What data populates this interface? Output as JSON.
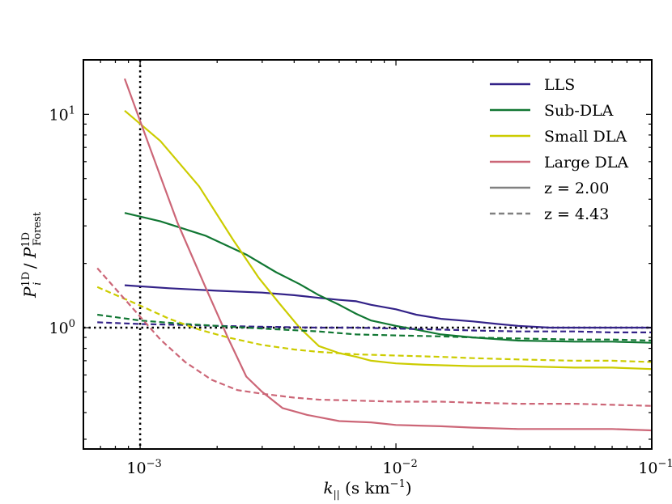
{
  "chart_data": {
    "type": "line",
    "xscale": "log",
    "yscale": "log",
    "xlim": [
      0.0006,
      0.1
    ],
    "ylim": [
      0.27,
      18
    ],
    "xlabel": "k|| (s km−1)",
    "ylabel": "P_i^1D / P_Forest^1D",
    "x_ticks": [
      {
        "value": 0.001,
        "base": "10",
        "exp": "−3"
      },
      {
        "value": 0.01,
        "base": "10",
        "exp": "−2"
      },
      {
        "value": 0.1,
        "base": "10",
        "exp": "−1"
      }
    ],
    "y_ticks": [
      {
        "value": 1,
        "base": "10",
        "exp": "0"
      },
      {
        "value": 10,
        "base": "10",
        "exp": "1"
      }
    ],
    "reference_lines": [
      {
        "axis": "x",
        "value": 0.001,
        "style": "dotted"
      },
      {
        "axis": "y",
        "value": 1.0,
        "style": "dotted"
      }
    ],
    "legend": {
      "position": "top-right",
      "entries": [
        {
          "label": "LLS",
          "color": "#332288",
          "style": "solid"
        },
        {
          "label": "Sub-DLA",
          "color": "#117733",
          "style": "solid"
        },
        {
          "label": "Small DLA",
          "color": "#cccc00",
          "style": "solid"
        },
        {
          "label": "Large DLA",
          "color": "#cc6677",
          "style": "solid"
        },
        {
          "label": "z = 2.00",
          "color": "#808080",
          "style": "solid"
        },
        {
          "label": "z = 4.43",
          "color": "#808080",
          "style": "dashed"
        }
      ]
    },
    "series": [
      {
        "name": "LLS z=2.00",
        "color": "#332288",
        "style": "solid",
        "x": [
          0.00087,
          0.0013,
          0.002,
          0.003,
          0.004,
          0.005,
          0.006,
          0.007,
          0.008,
          0.01,
          0.012,
          0.015,
          0.02,
          0.025,
          0.03,
          0.04,
          0.05,
          0.07,
          0.1
        ],
        "y": [
          1.58,
          1.53,
          1.49,
          1.46,
          1.42,
          1.38,
          1.35,
          1.33,
          1.28,
          1.22,
          1.15,
          1.1,
          1.07,
          1.04,
          1.02,
          1.0,
          1.0,
          1.0,
          1.0
        ]
      },
      {
        "name": "Sub-DLA z=2.00",
        "color": "#117733",
        "style": "solid",
        "x": [
          0.00087,
          0.0012,
          0.0018,
          0.0026,
          0.0034,
          0.0042,
          0.005,
          0.006,
          0.007,
          0.008,
          0.01,
          0.012,
          0.015,
          0.02,
          0.03,
          0.05,
          0.07,
          0.1
        ],
        "y": [
          3.45,
          3.15,
          2.7,
          2.2,
          1.82,
          1.6,
          1.42,
          1.28,
          1.16,
          1.08,
          1.02,
          0.98,
          0.93,
          0.9,
          0.87,
          0.86,
          0.86,
          0.85
        ]
      },
      {
        "name": "Small DLA z=2.00",
        "color": "#cccc00",
        "style": "solid",
        "x": [
          0.00087,
          0.0012,
          0.0017,
          0.0023,
          0.0029,
          0.0035,
          0.0042,
          0.005,
          0.006,
          0.007,
          0.008,
          0.01,
          0.013,
          0.02,
          0.03,
          0.05,
          0.07,
          0.1
        ],
        "y": [
          10.4,
          7.5,
          4.6,
          2.6,
          1.72,
          1.3,
          1.0,
          0.82,
          0.76,
          0.73,
          0.7,
          0.68,
          0.67,
          0.66,
          0.66,
          0.65,
          0.65,
          0.64
        ]
      },
      {
        "name": "Large DLA z=2.00",
        "color": "#cc6677",
        "style": "solid",
        "x": [
          0.00087,
          0.0011,
          0.0014,
          0.0018,
          0.0022,
          0.0026,
          0.003,
          0.0036,
          0.0045,
          0.006,
          0.008,
          0.01,
          0.015,
          0.02,
          0.03,
          0.05,
          0.07,
          0.1
        ],
        "y": [
          14.7,
          6.8,
          3.1,
          1.55,
          0.9,
          0.59,
          0.5,
          0.42,
          0.39,
          0.365,
          0.36,
          0.35,
          0.345,
          0.34,
          0.335,
          0.335,
          0.335,
          0.33
        ]
      },
      {
        "name": "LLS z=4.43",
        "color": "#332288",
        "style": "dashed",
        "x": [
          0.00068,
          0.001,
          0.0015,
          0.002,
          0.003,
          0.005,
          0.007,
          0.01,
          0.015,
          0.02,
          0.03,
          0.05,
          0.07,
          0.1
        ],
        "y": [
          1.06,
          1.04,
          1.03,
          1.02,
          1.01,
          1.0,
          1.0,
          0.99,
          0.98,
          0.97,
          0.96,
          0.96,
          0.95,
          0.95
        ]
      },
      {
        "name": "Sub-DLA z=4.43",
        "color": "#117733",
        "style": "dashed",
        "x": [
          0.00068,
          0.001,
          0.0015,
          0.002,
          0.003,
          0.005,
          0.007,
          0.01,
          0.015,
          0.02,
          0.03,
          0.05,
          0.07,
          0.1
        ],
        "y": [
          1.15,
          1.08,
          1.04,
          1.02,
          0.99,
          0.96,
          0.93,
          0.92,
          0.91,
          0.9,
          0.89,
          0.88,
          0.88,
          0.87
        ]
      },
      {
        "name": "Small DLA z=4.43",
        "color": "#cccc00",
        "style": "dashed",
        "x": [
          0.00068,
          0.001,
          0.0013,
          0.0017,
          0.0022,
          0.003,
          0.004,
          0.005,
          0.007,
          0.01,
          0.015,
          0.02,
          0.03,
          0.05,
          0.07,
          0.1
        ],
        "y": [
          1.55,
          1.27,
          1.1,
          0.98,
          0.9,
          0.83,
          0.79,
          0.77,
          0.75,
          0.74,
          0.73,
          0.72,
          0.71,
          0.7,
          0.7,
          0.69
        ]
      },
      {
        "name": "Large DLA z=4.43",
        "color": "#cc6677",
        "style": "dashed",
        "x": [
          0.00068,
          0.0009,
          0.0012,
          0.0015,
          0.0019,
          0.0024,
          0.003,
          0.004,
          0.005,
          0.007,
          0.01,
          0.015,
          0.02,
          0.03,
          0.05,
          0.07,
          0.1
        ],
        "y": [
          1.9,
          1.3,
          0.88,
          0.69,
          0.57,
          0.51,
          0.49,
          0.47,
          0.46,
          0.455,
          0.45,
          0.45,
          0.445,
          0.44,
          0.44,
          0.435,
          0.43
        ]
      }
    ]
  }
}
